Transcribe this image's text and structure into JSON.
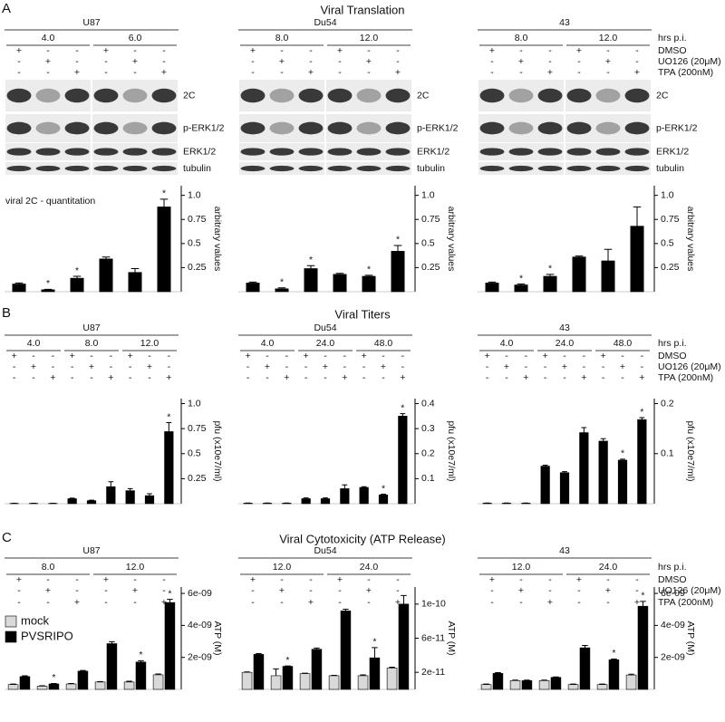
{
  "panels": [
    {
      "letter": "A",
      "title": "Viral Translation",
      "ylabel": "arbitrary values",
      "note": "viral 2C - quantitation",
      "row_labels": [
        "hrs p.i.",
        "DMSO",
        "UO126 (20μM)",
        "TPA (200nM)"
      ],
      "blot_rows": [
        "2C",
        "p-ERK1/2",
        "ERK1/2",
        "tubulin"
      ]
    },
    {
      "letter": "B",
      "title": "Viral Titers",
      "ylabel": "pfu (x10e7/ml)",
      "row_labels": [
        "hrs p.i.",
        "DMSO",
        "UO126 (20μM)",
        "TPA (200nM)"
      ]
    },
    {
      "letter": "C",
      "title": "Viral Cytotoxicity (ATP Release)",
      "ylabel": "ATP (M)",
      "row_labels": [
        "hrs p.i.",
        "DMSO",
        "UO126 (20μM)",
        "TPA (200nM)"
      ]
    }
  ],
  "chart_data": [
    {
      "type": "bar",
      "title": "U87",
      "groups": [
        "4.0",
        "6.0"
      ],
      "conditions": [
        [
          "+",
          "-",
          "-",
          "+",
          "-",
          "-"
        ],
        [
          "-",
          "+",
          "-",
          "-",
          "+",
          "-"
        ],
        [
          "-",
          "-",
          "+",
          "-",
          "-",
          "+"
        ]
      ],
      "values": [
        0.08,
        0.02,
        0.14,
        0.34,
        0.2,
        0.88
      ],
      "errors": [
        0.01,
        0.005,
        0.02,
        0.02,
        0.04,
        0.08
      ],
      "markers": [
        null,
        "*",
        "*",
        null,
        null,
        "*"
      ],
      "color": "#000000",
      "ylim": [
        0,
        1.1
      ],
      "yticks": [
        0.25,
        0.5,
        0.75,
        {
          "value": 1,
          "label": "1.0"
        }
      ]
    },
    {
      "type": "bar",
      "title": "Du54",
      "groups": [
        "8.0",
        "12.0"
      ],
      "conditions": [
        [
          "+",
          "-",
          "-",
          "+",
          "-",
          "-"
        ],
        [
          "-",
          "+",
          "-",
          "-",
          "+",
          "-"
        ],
        [
          "-",
          "-",
          "+",
          "-",
          "-",
          "+"
        ]
      ],
      "values": [
        0.09,
        0.03,
        0.24,
        0.18,
        0.16,
        0.42
      ],
      "errors": [
        0.01,
        0.01,
        0.03,
        0.01,
        0.01,
        0.06
      ],
      "markers": [
        null,
        "*",
        "*",
        null,
        "*",
        "*"
      ],
      "color": "#000000",
      "ylim": [
        0,
        1.1
      ],
      "yticks": [
        0.25,
        0.5,
        0.75,
        {
          "value": 1,
          "label": "1.0"
        }
      ]
    },
    {
      "type": "bar",
      "title": "43",
      "groups": [
        "8.0",
        "12.0"
      ],
      "conditions": [
        [
          "+",
          "-",
          "-",
          "+",
          "-",
          "-"
        ],
        [
          "-",
          "+",
          "-",
          "-",
          "+",
          "-"
        ],
        [
          "-",
          "-",
          "+",
          "-",
          "-",
          "+"
        ]
      ],
      "values": [
        0.09,
        0.07,
        0.16,
        0.36,
        0.32,
        0.68
      ],
      "errors": [
        0.01,
        0.01,
        0.02,
        0.01,
        0.12,
        0.2
      ],
      "markers": [
        null,
        "*",
        "*",
        null,
        null,
        null
      ],
      "color": "#000000",
      "ylim": [
        0,
        1.1
      ],
      "yticks": [
        0.25,
        0.5,
        0.75,
        {
          "value": 1,
          "label": "1.0"
        }
      ]
    },
    {
      "type": "bar",
      "title": "U87",
      "groups": [
        "4.0",
        "8.0",
        "12.0"
      ],
      "conditions": [
        [
          "+",
          "-",
          "-",
          "+",
          "-",
          "-",
          "+",
          "-",
          "-"
        ],
        [
          "-",
          "+",
          "-",
          "-",
          "+",
          "-",
          "-",
          "+",
          "-"
        ],
        [
          "-",
          "-",
          "+",
          "-",
          "-",
          "+",
          "-",
          "-",
          "+"
        ]
      ],
      "values": [
        0.003,
        0.003,
        0.003,
        0.05,
        0.03,
        0.17,
        0.13,
        0.08,
        0.72
      ],
      "errors": [
        0.001,
        0.001,
        0.001,
        0.005,
        0.005,
        0.05,
        0.02,
        0.02,
        0.09
      ],
      "markers": [
        null,
        null,
        null,
        null,
        null,
        null,
        null,
        null,
        "*"
      ],
      "color": "#000000",
      "ylim": [
        0,
        1.05
      ],
      "yticks": [
        0.25,
        0.5,
        0.75,
        {
          "value": 1,
          "label": "1.0"
        }
      ]
    },
    {
      "type": "bar",
      "title": "Du54",
      "groups": [
        "4.0",
        "24.0",
        "48.0"
      ],
      "conditions": [
        [
          "+",
          "-",
          "-",
          "+",
          "-",
          "-",
          "+",
          "-",
          "-"
        ],
        [
          "-",
          "+",
          "-",
          "-",
          "+",
          "-",
          "-",
          "+",
          "-"
        ],
        [
          "-",
          "-",
          "+",
          "-",
          "-",
          "+",
          "-",
          "-",
          "+"
        ]
      ],
      "values": [
        0.002,
        0.002,
        0.002,
        0.02,
        0.02,
        0.06,
        0.065,
        0.035,
        0.35
      ],
      "errors": [
        0.0005,
        0.0005,
        0.0005,
        0.003,
        0.003,
        0.015,
        0.003,
        0.003,
        0.01
      ],
      "markers": [
        null,
        null,
        null,
        null,
        null,
        null,
        null,
        "*",
        "*"
      ],
      "color": "#000000",
      "ylim": [
        0,
        0.42
      ],
      "yticks": [
        0.1,
        0.2,
        0.3,
        0.4
      ]
    },
    {
      "type": "bar",
      "title": "43",
      "groups": [
        "4.0",
        "24.0",
        "48.0"
      ],
      "conditions": [
        [
          "+",
          "-",
          "-",
          "+",
          "-",
          "-",
          "+",
          "-",
          "-"
        ],
        [
          "-",
          "+",
          "-",
          "-",
          "+",
          "-",
          "-",
          "+",
          "-"
        ],
        [
          "-",
          "-",
          "+",
          "-",
          "-",
          "+",
          "-",
          "-",
          "+"
        ]
      ],
      "values": [
        0.001,
        0.001,
        0.001,
        0.075,
        0.062,
        0.142,
        0.125,
        0.087,
        0.168
      ],
      "errors": [
        0.0003,
        0.0003,
        0.0003,
        0.002,
        0.002,
        0.01,
        0.005,
        0.002,
        0.004
      ],
      "markers": [
        null,
        null,
        null,
        null,
        null,
        null,
        null,
        "*",
        "*"
      ],
      "color": "#000000",
      "ylim": [
        0,
        0.21
      ],
      "yticks": [
        0.1,
        0.2
      ]
    },
    {
      "type": "bar",
      "title": "U87",
      "groups": [
        "8.0",
        "12.0"
      ],
      "legend": "upper left",
      "conditions": [
        [
          "+",
          "-",
          "-",
          "+",
          "-",
          "-"
        ],
        [
          "-",
          "+",
          "-",
          "-",
          "+",
          "-"
        ],
        [
          "-",
          "-",
          "+",
          "-",
          "-",
          "+"
        ]
      ],
      "series": [
        {
          "name": "mock",
          "color": "#d9d9d9",
          "values": [
            3e-10,
            2e-10,
            3.4e-10,
            4.6e-10,
            4.6e-10,
            9.1e-10
          ],
          "errors": [
            3e-11,
            3e-11,
            3e-11,
            3e-11,
            5e-11,
            5e-11
          ],
          "markers": [
            null,
            null,
            null,
            null,
            null,
            null
          ]
        },
        {
          "name": "PVSRIPO",
          "color": "#000000",
          "values": [
            8e-10,
            3.4e-10,
            1.14e-09,
            2.86e-09,
            1.71e-09,
            5.43e-09
          ],
          "errors": [
            5e-11,
            3e-11,
            4e-11,
            1.2e-10,
            8e-11,
            2e-10
          ],
          "markers": [
            null,
            "*",
            null,
            null,
            "*",
            "*"
          ]
        }
      ],
      "ylim": [
        0,
        6.4e-09
      ],
      "yticks": [
        {
          "value": 2e-09,
          "label": "2e-09"
        },
        {
          "value": 4e-09,
          "label": "4e-09"
        },
        {
          "value": 6e-09,
          "label": "6e-09"
        }
      ]
    },
    {
      "type": "bar",
      "title": "Du54",
      "groups": [
        "12.0",
        "24.0"
      ],
      "conditions": [
        [
          "+",
          "-",
          "-",
          "+",
          "-",
          "-"
        ],
        [
          "-",
          "+",
          "-",
          "-",
          "+",
          "-"
        ],
        [
          "-",
          "-",
          "+",
          "-",
          "-",
          "+"
        ]
      ],
      "series": [
        {
          "color": "#d9d9d9",
          "values": [
            2e-11,
            1.6e-11,
            1.85e-11,
            1.6e-11,
            1.6e-11,
            2.5e-11
          ],
          "errors": [
            5e-13,
            8e-12,
            5e-13,
            5e-13,
            1e-12,
            1e-12
          ],
          "markers": [
            null,
            null,
            null,
            null,
            null,
            null
          ]
        },
        {
          "color": "#000000",
          "values": [
            4.1e-11,
            2.7e-11,
            4.7e-11,
            9.2e-11,
            3.7e-11,
            1e-10
          ],
          "errors": [
            1e-12,
            5e-13,
            1.5e-12,
            2e-12,
            1.2e-11,
            1e-11
          ],
          "markers": [
            null,
            "*",
            null,
            null,
            "*",
            null
          ]
        }
      ],
      "ylim": [
        0,
        1.2e-10
      ],
      "yticks": [
        2e-11,
        6e-11,
        1e-10
      ]
    },
    {
      "type": "bar",
      "title": "43",
      "groups": [
        "12.0",
        "24.0"
      ],
      "conditions": [
        [
          "+",
          "-",
          "-",
          "+",
          "-",
          "-"
        ],
        [
          "-",
          "+",
          "-",
          "-",
          "+",
          "-"
        ],
        [
          "-",
          "-",
          "+",
          "-",
          "-",
          "+"
        ]
      ],
      "series": [
        {
          "color": "#d9d9d9",
          "values": [
            3e-10,
            5.5e-10,
            5.5e-10,
            3e-10,
            3e-10,
            9e-10
          ],
          "errors": [
            3e-11,
            3e-11,
            3e-11,
            3e-11,
            3e-11,
            5e-11
          ],
          "markers": [
            null,
            null,
            null,
            null,
            null,
            null
          ]
        },
        {
          "color": "#000000",
          "values": [
            1e-09,
            5.5e-10,
            7.5e-10,
            2.6e-09,
            1.85e-09,
            5.2e-09
          ],
          "errors": [
            5e-11,
            3e-11,
            3e-11,
            1.5e-10,
            5e-11,
            3e-10
          ],
          "markers": [
            null,
            null,
            null,
            null,
            "*",
            "*"
          ]
        }
      ],
      "ylim": [
        0,
        6.4e-09
      ],
      "yticks": [
        {
          "value": 2e-09,
          "label": "2e-09"
        },
        {
          "value": 4e-09,
          "label": "4e-09"
        },
        {
          "value": 6e-09,
          "label": "6e-09"
        }
      ]
    }
  ]
}
